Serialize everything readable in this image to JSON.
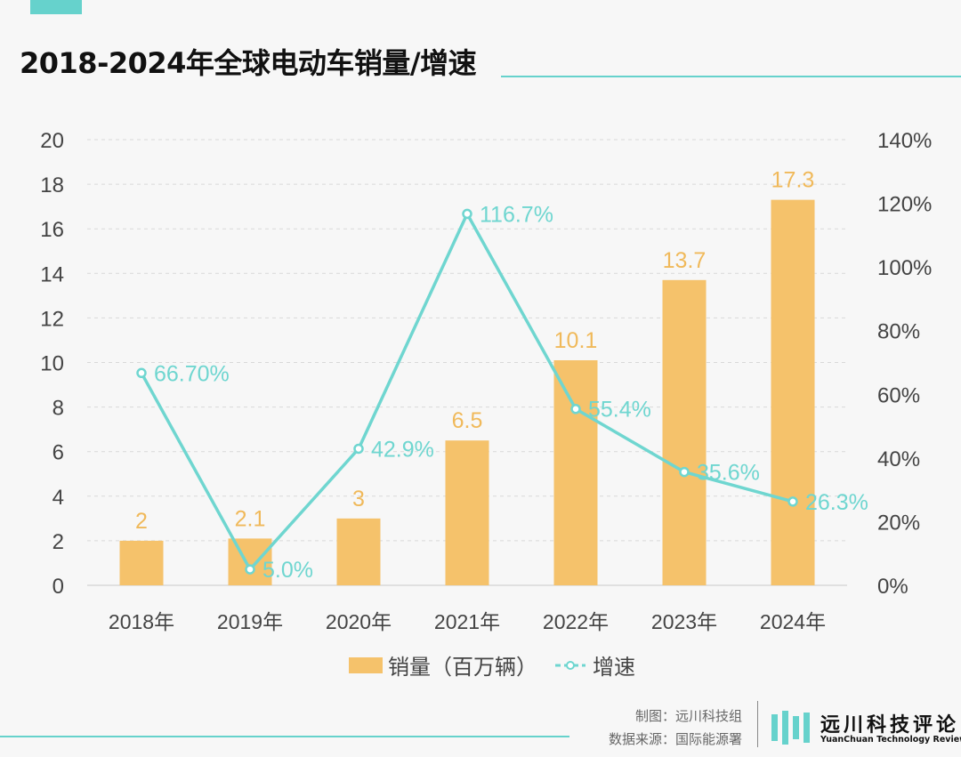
{
  "title": "2018-2024年全球电动车销量/增速",
  "colors": {
    "accent": "#66d2cc",
    "bar": "#f5c26b",
    "bar_label": "#f0b95a",
    "line": "#6fd6d0",
    "grid": "#d9d9d9"
  },
  "chart_data": {
    "type": "bar",
    "categories": [
      "2018年",
      "2019年",
      "2020年",
      "2021年",
      "2022年",
      "2023年",
      "2024年"
    ],
    "series": [
      {
        "name": "销量（百万辆）",
        "type": "bar",
        "axis": "left",
        "values": [
          2,
          2.1,
          3,
          6.5,
          10.1,
          13.7,
          17.3
        ],
        "labels": [
          "2",
          "2.1",
          "3",
          "6.5",
          "10.1",
          "13.7",
          "17.3"
        ]
      },
      {
        "name": "增速",
        "type": "line",
        "axis": "right",
        "values": [
          66.7,
          5.0,
          42.9,
          116.7,
          55.4,
          35.6,
          26.3
        ],
        "labels": [
          "66.70%",
          "5.0%",
          "42.9%",
          "116.7%",
          "55.4%",
          "35.6%",
          "26.3%"
        ]
      }
    ],
    "y_left": {
      "min": 0,
      "max": 20,
      "ticks": [
        "0",
        "2",
        "4",
        "6",
        "8",
        "10",
        "12",
        "14",
        "16",
        "18",
        "20"
      ]
    },
    "y_right": {
      "min": 0,
      "max": 140,
      "ticks": [
        "0%",
        "20%",
        "40%",
        "60%",
        "80%",
        "100%",
        "120%",
        "140%"
      ]
    },
    "grid": true,
    "legend_position": "bottom"
  },
  "legend": {
    "bar_label": "销量（百万辆）",
    "line_label": "增速"
  },
  "credits": {
    "made_by": "制图：远川科技组",
    "source": "数据来源：国际能源署"
  },
  "brand": {
    "name_cn": "远川科技评论",
    "name_en": "YuanChuan Technology Review"
  }
}
